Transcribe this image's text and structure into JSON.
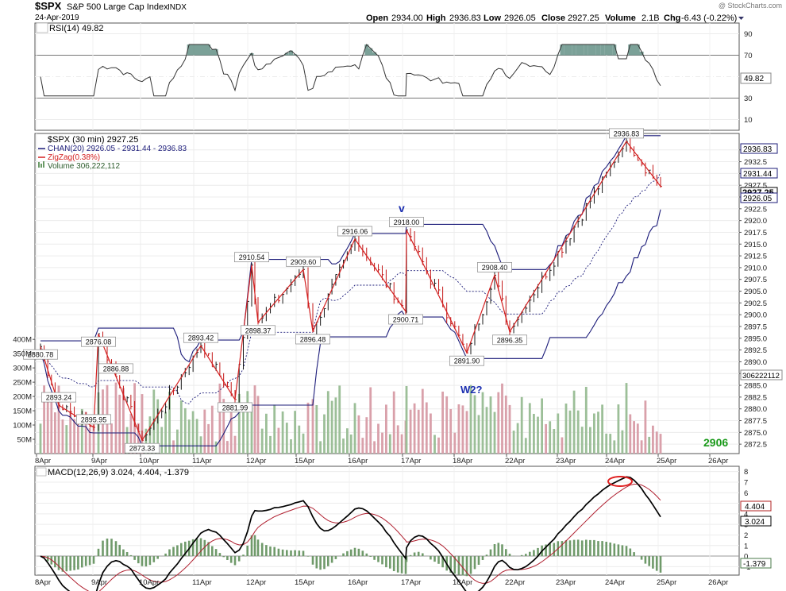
{
  "header": {
    "symbol": "$SPX",
    "name": "S&P 500 Large Cap Index",
    "exchange": "INDX",
    "date": "24-Apr-2019",
    "watermark": "@ StockCharts.com",
    "open_label": "Open",
    "open": "2934.00",
    "high_label": "High",
    "high": "2936.83",
    "low_label": "Low",
    "low": "2926.05",
    "close_label": "Close",
    "close": "2927.25",
    "volume_label": "Volume",
    "volume": "2.1B",
    "chg_label": "Chg",
    "chg": "-6.43 (-0.22%)"
  },
  "rsi_panel": {
    "legend": "RSI(14) 49.82",
    "current_label": "49.82",
    "levels": [
      "90",
      "70",
      "50",
      "30",
      "10"
    ]
  },
  "price_panel": {
    "legend_title": "$SPX (30 min) 2927.25",
    "legend_chan": "CHAN(20) 2926.05 - 2931.44 - 2936.83",
    "legend_zigzag": "ZigZag(0.38%)",
    "legend_volume": "Volume 306,222,112",
    "badge_upper": "2936.83",
    "badge_mid": "2931.44",
    "badge_close": "2927.25",
    "badge_lower": "2926.05",
    "badge_volume": "306222112",
    "annotations": {
      "wave_v": "v",
      "wave_w2": "W2?",
      "target": "2906"
    },
    "price_ticks": [
      "2935.0",
      "2932.5",
      "2930.0",
      "2927.5",
      "2925.0",
      "2922.5",
      "2920.0",
      "2917.5",
      "2915.0",
      "2912.5",
      "2910.0",
      "2907.5",
      "2905.0",
      "2902.5",
      "2900.0",
      "2897.5",
      "2895.0",
      "2892.5",
      "2890.0",
      "2887.5",
      "2885.0",
      "2882.5",
      "2880.0",
      "2877.5",
      "2875.0",
      "2872.5"
    ],
    "volume_ticks": [
      "400M",
      "350M",
      "300M",
      "250M",
      "200M",
      "150M",
      "100M",
      "50M"
    ]
  },
  "macd_panel": {
    "legend": "MACD(12,26,9) 3.024, 4.404, -1.379",
    "badge_signal": "4.404",
    "badge_macd": "3.024",
    "badge_hist": "-1.379",
    "ticks": [
      "8",
      "7",
      "6",
      "5",
      "4",
      "3",
      "2",
      "1",
      "0",
      "-1"
    ]
  },
  "x_axis": [
    "8Apr",
    "9Apr",
    "10Apr",
    "11Apr",
    "12Apr",
    "15Apr",
    "16Apr",
    "17Apr",
    "18Apr",
    "22Apr",
    "23Apr",
    "24Apr",
    "25Apr",
    "26Apr"
  ],
  "colors": {
    "up": "#1a1a1a",
    "zigzag": "#d42020",
    "channel": "#1c1c7a",
    "vol_up": "#9cbf98",
    "vol_down": "#d9a0aa",
    "rsi_fill": "#5a8a7e",
    "annotation": "#1c2fb0",
    "target": "#1a9a1a"
  },
  "chart_data": {
    "type": "line",
    "title": "$SPX S&P 500 Large Cap Index INDX",
    "subtitle": "24-Apr-2019",
    "xlabel": "",
    "ylabel": "",
    "ylim": [
      2870.5,
      2938.5
    ],
    "x": [
      "8Apr",
      "9Apr",
      "10Apr",
      "11Apr",
      "12Apr",
      "15Apr",
      "16Apr",
      "17Apr",
      "18Apr",
      "22Apr",
      "23Apr",
      "24Apr",
      "25Apr",
      "26Apr"
    ],
    "zigzag_points": [
      {
        "x": "8Apr",
        "y": 2880.78
      },
      {
        "x": "8Apr",
        "y": 2893.24
      },
      {
        "x": "9Apr",
        "y": 2876.08
      },
      {
        "x": "9Apr",
        "y": 2895.95
      },
      {
        "x": "9Apr",
        "y": 2886.88
      },
      {
        "x": "10Apr",
        "y": 2873.33
      },
      {
        "x": "11Apr",
        "y": 2893.42
      },
      {
        "x": "11Apr",
        "y": 2881.99
      },
      {
        "x": "12Apr",
        "y": 2910.54
      },
      {
        "x": "12Apr",
        "y": 2898.37
      },
      {
        "x": "15Apr",
        "y": 2909.6
      },
      {
        "x": "15Apr",
        "y": 2896.48
      },
      {
        "x": "16Apr",
        "y": 2916.06
      },
      {
        "x": "17Apr",
        "y": 2900.71
      },
      {
        "x": "17Apr",
        "y": 2918.0
      },
      {
        "x": "18Apr",
        "y": 2891.9
      },
      {
        "x": "22Apr",
        "y": 2908.4
      },
      {
        "x": "22Apr",
        "y": 2896.35
      },
      {
        "x": "24Apr",
        "y": 2936.83
      },
      {
        "x": "24Apr",
        "y": 2927.25
      }
    ],
    "point_labels": [
      "2893.24",
      "2880.78",
      "2895.95",
      "2876.08",
      "2886.88",
      "2873.33",
      "2893.42",
      "2881.99",
      "2910.54",
      "2898.37",
      "2909.60",
      "2896.48",
      "2916.06",
      "2900.71",
      "2918.00",
      "2891.90",
      "2908.40",
      "2896.35",
      "2936.83"
    ],
    "rsi": {
      "value": 49.82,
      "ylim": [
        0,
        100
      ]
    },
    "macd": {
      "macd": 3.024,
      "signal": 4.404,
      "histogram": -1.379,
      "ylim": [
        -1.8,
        8.5
      ]
    },
    "ohlc_last": {
      "open": 2934.0,
      "high": 2936.83,
      "low": 2926.05,
      "close": 2927.25
    }
  }
}
